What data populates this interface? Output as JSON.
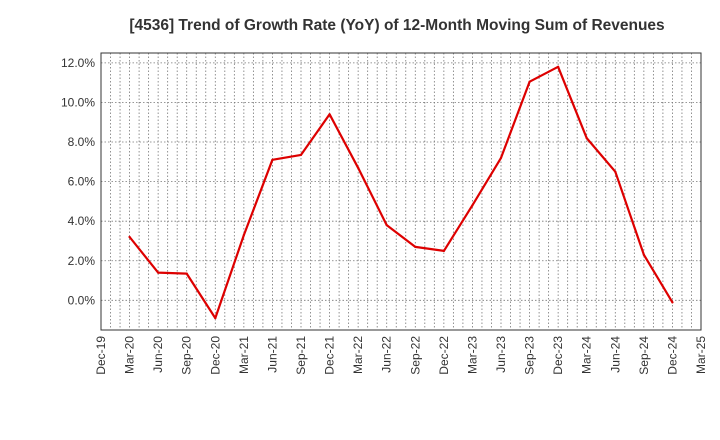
{
  "chart_data": {
    "type": "line",
    "title": "[4536]  Trend of Growth Rate (YoY) of 12-Month Moving Sum of Revenues",
    "xlabel": "",
    "ylabel": "",
    "x_ticks": [
      "Dec-19",
      "Mar-20",
      "Jun-20",
      "Sep-20",
      "Dec-20",
      "Mar-21",
      "Jun-21",
      "Sep-21",
      "Dec-21",
      "Mar-22",
      "Jun-22",
      "Sep-22",
      "Dec-22",
      "Mar-23",
      "Jun-23",
      "Sep-23",
      "Dec-23",
      "Mar-24",
      "Jun-24",
      "Sep-24",
      "Dec-24",
      "Mar-25"
    ],
    "y_ticks": [
      {
        "value": 12.0,
        "label": "12.0%"
      },
      {
        "value": 10.0,
        "label": "10.0%"
      },
      {
        "value": 8.0,
        "label": "8.0%"
      },
      {
        "value": 6.0,
        "label": "6.0%"
      },
      {
        "value": 4.0,
        "label": "4.0%"
      },
      {
        "value": 2.0,
        "label": "2.0%"
      },
      {
        "value": 0.0,
        "label": "0.0%"
      }
    ],
    "ylim": [
      -1.5,
      12.5
    ],
    "x_range_months": [
      "Dec-19",
      "Mar-25"
    ],
    "grid": true,
    "legend": false,
    "series": [
      {
        "color": "#dd0000",
        "points": [
          {
            "x": "Mar-20",
            "y": 3.2
          },
          {
            "x": "Jun-20",
            "y": 1.4
          },
          {
            "x": "Sep-20",
            "y": 1.35
          },
          {
            "x": "Dec-20",
            "y": -0.9
          },
          {
            "x": "Mar-21",
            "y": 3.3
          },
          {
            "x": "Jun-21",
            "y": 7.1
          },
          {
            "x": "Sep-21",
            "y": 7.35
          },
          {
            "x": "Dec-21",
            "y": 9.4
          },
          {
            "x": "Mar-22",
            "y": 6.7
          },
          {
            "x": "Jun-22",
            "y": 3.8
          },
          {
            "x": "Sep-22",
            "y": 2.7
          },
          {
            "x": "Dec-22",
            "y": 2.5
          },
          {
            "x": "Mar-23",
            "y": 4.8
          },
          {
            "x": "Jun-23",
            "y": 7.2
          },
          {
            "x": "Sep-23",
            "y": 11.05
          },
          {
            "x": "Dec-23",
            "y": 11.8
          },
          {
            "x": "Mar-24",
            "y": 8.2
          },
          {
            "x": "Jun-24",
            "y": 6.5
          },
          {
            "x": "Sep-24",
            "y": 2.3
          },
          {
            "x": "Dec-24",
            "y": -0.1
          }
        ]
      }
    ]
  }
}
